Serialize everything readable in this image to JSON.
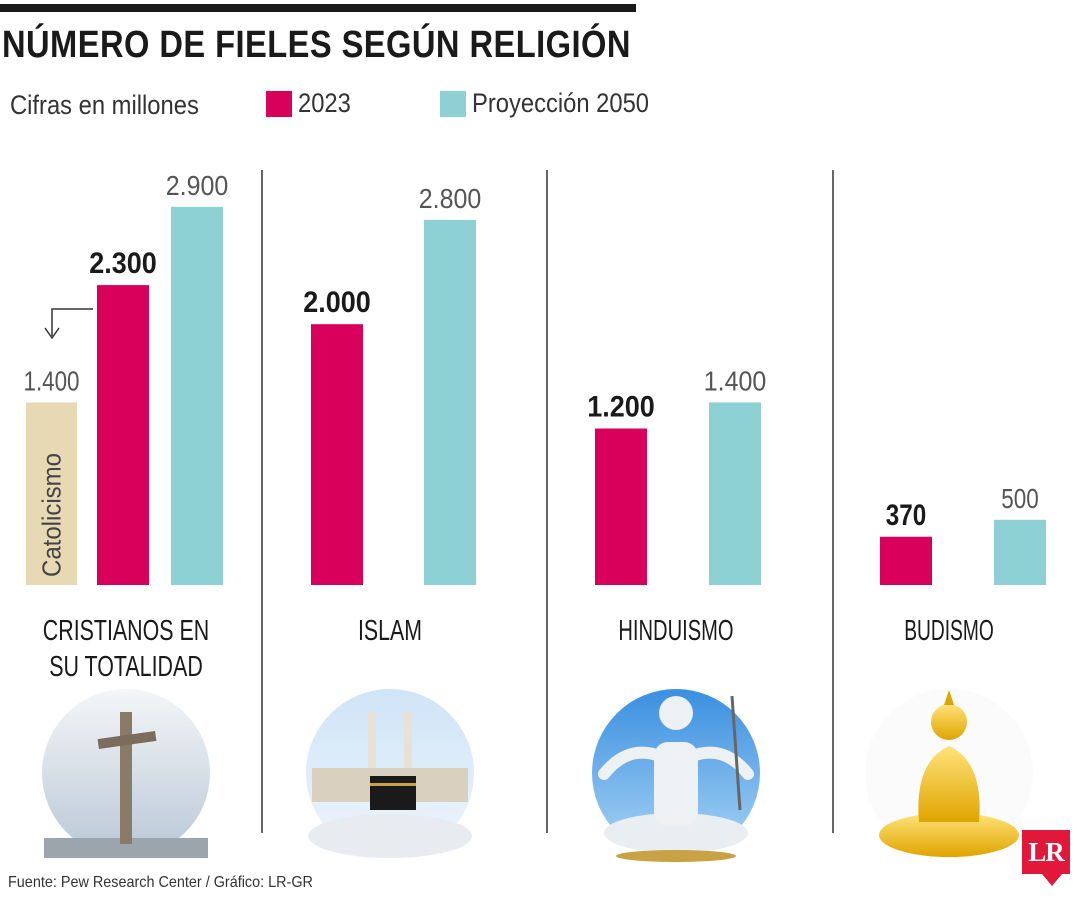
{
  "title": "NÚMERO DE FIELES SEGÚN RELIGIÓN",
  "subtitle": "Cifras en millones",
  "source": "Fuente: Pew Research Center / Gráfico: LR-GR",
  "logo_text": "LR",
  "colors": {
    "series_2023": "#d8005a",
    "series_2050": "#8dd1d4",
    "catolicismo": "#e8d9b5",
    "text": "#1a1a1a"
  },
  "chart_data": {
    "type": "bar",
    "title": "NÚMERO DE FIELES SEGÚN RELIGIÓN",
    "ylabel": "Cifras en millones",
    "ylim": [
      0,
      3000
    ],
    "grid": false,
    "legend_position": "top",
    "categories": [
      {
        "lines": [
          "CRISTIANOS EN",
          "SU TOTALIDAD"
        ]
      },
      {
        "lines": [
          "ISLAM"
        ]
      },
      {
        "lines": [
          "HINDUISMO"
        ]
      },
      {
        "lines": [
          "BUDISMO"
        ]
      }
    ],
    "series": [
      {
        "name": "2023",
        "values": [
          2300,
          2000,
          1200,
          370
        ],
        "labels": [
          "2.300",
          "2.000",
          "1.200",
          "370"
        ]
      },
      {
        "name": "Proyección 2050",
        "values": [
          2900,
          2800,
          1400,
          500
        ],
        "labels": [
          "2.900",
          "2.800",
          "1.400",
          "500"
        ]
      }
    ],
    "sub_bar": {
      "category_index": 0,
      "name": "Catolicismo",
      "value": 1400,
      "label": "1.400"
    }
  }
}
